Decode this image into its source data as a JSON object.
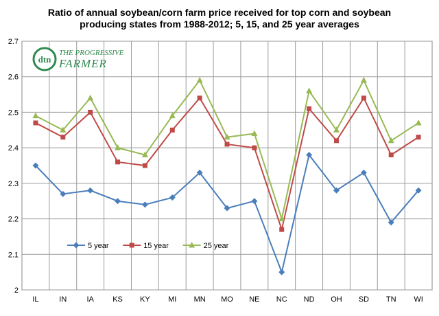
{
  "chart_data": {
    "type": "line",
    "title_line1": "Ratio of annual soybean/corn  farm price received for top corn and soybean",
    "title_line2": "producing states from 1988-2012;  5, 15, and 25 year averages",
    "categories": [
      "IL",
      "IN",
      "IA",
      "KS",
      "KY",
      "MI",
      "MN",
      "MO",
      "NE",
      "NC",
      "ND",
      "OH",
      "SD",
      "TN",
      "WI"
    ],
    "ylim": [
      2,
      2.7
    ],
    "yticks": [
      "2",
      "2.1",
      "2.2",
      "2.3",
      "2.4",
      "2.5",
      "2.6",
      "2.7"
    ],
    "grid": true,
    "legend_position": "bottom-left",
    "series": [
      {
        "name": "5 year",
        "color": "#4a7ebb",
        "marker": "diamond",
        "values": [
          2.35,
          2.27,
          2.28,
          2.25,
          2.24,
          2.26,
          2.33,
          2.23,
          2.25,
          2.05,
          2.38,
          2.28,
          2.33,
          2.19,
          2.28
        ]
      },
      {
        "name": "15 year",
        "color": "#be4b48",
        "marker": "square",
        "values": [
          2.47,
          2.43,
          2.5,
          2.36,
          2.35,
          2.45,
          2.54,
          2.41,
          2.4,
          2.17,
          2.51,
          2.42,
          2.54,
          2.38,
          2.43
        ]
      },
      {
        "name": "25 year",
        "color": "#98b954",
        "marker": "triangle",
        "values": [
          2.49,
          2.45,
          2.54,
          2.4,
          2.38,
          2.49,
          2.59,
          2.43,
          2.44,
          2.2,
          2.56,
          2.45,
          2.59,
          2.42,
          2.47
        ]
      }
    ]
  },
  "logo": {
    "badge_text": "dtn",
    "brand_line1": "THE PROGRESSIVE",
    "brand_line2": "FARMER",
    "color": "#2f8a4f"
  }
}
